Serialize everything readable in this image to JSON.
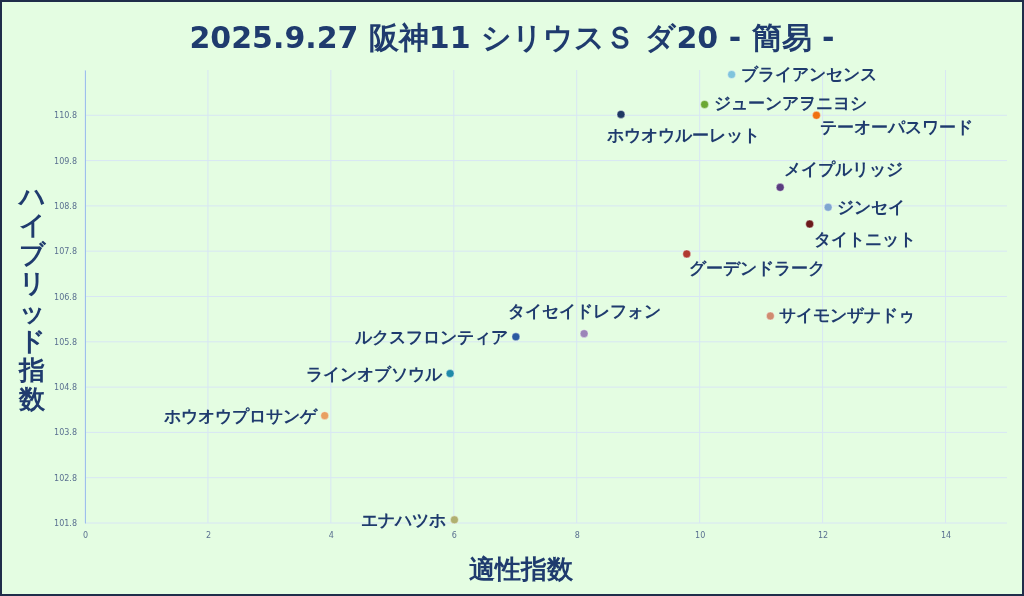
{
  "chart_data": {
    "type": "scatter",
    "title": "2025.9.27 阪神11 シリウスＳ ダ20  - 簡易 -",
    "xlabel": "適性指数",
    "ylabel": "ハイブリッド指数",
    "xlim": [
      0,
      15
    ],
    "ylim": [
      101.8,
      111.8
    ],
    "xticks": [
      0,
      2,
      4,
      6,
      8,
      10,
      12,
      14
    ],
    "yticks": [
      101.8,
      102.8,
      103.8,
      104.8,
      105.8,
      106.8,
      107.8,
      108.8,
      109.8,
      110.8
    ],
    "grid": true,
    "marker": "circle",
    "legend": false,
    "series": [
      {
        "name": "ブライアンセンス",
        "color": "#7fc4dc",
        "x": [
          10.52
        ],
        "values": [
          111.7
        ]
      },
      {
        "name": "ジューンアヲニヨシ",
        "color": "#6aa832",
        "x": [
          10.08
        ],
        "values": [
          111.04
        ]
      },
      {
        "name": "ホウオウルーレット",
        "color": "#1f3864",
        "x": [
          8.72
        ],
        "values": [
          110.82
        ]
      },
      {
        "name": "テーオーパスワード",
        "color": "#f07010",
        "x": [
          11.9
        ],
        "values": [
          110.8
        ]
      },
      {
        "name": "メイプルリッジ",
        "color": "#5a3d80",
        "x": [
          11.31
        ],
        "values": [
          109.21
        ]
      },
      {
        "name": "ジンセイ",
        "color": "#7fa6d0",
        "x": [
          12.09
        ],
        "values": [
          108.77
        ]
      },
      {
        "name": "タイトニット",
        "color": "#6b1a1a",
        "x": [
          11.79
        ],
        "values": [
          108.4
        ]
      },
      {
        "name": "グーデンドラーク",
        "color": "#b03a30",
        "x": [
          9.79
        ],
        "values": [
          107.74
        ]
      },
      {
        "name": "サイモンザナドゥ",
        "color": "#d08c70",
        "x": [
          11.15
        ],
        "values": [
          106.37
        ]
      },
      {
        "name": "タイセイドレフォン",
        "color": "#9b85b8",
        "x": [
          8.12
        ],
        "values": [
          105.98
        ]
      },
      {
        "name": "ルクスフロンティア",
        "color": "#2a5aa0",
        "x": [
          7.01
        ],
        "values": [
          105.91
        ]
      },
      {
        "name": "ラインオブソウル",
        "color": "#1f8aa8",
        "x": [
          5.94
        ],
        "values": [
          105.1
        ]
      },
      {
        "name": "ホウオウプロサンゲ",
        "color": "#e8a060",
        "x": [
          3.9
        ],
        "values": [
          104.17
        ]
      },
      {
        "name": "エナハツホ",
        "color": "#b0b070",
        "x": [
          6.01
        ],
        "values": [
          101.87
        ]
      }
    ]
  }
}
